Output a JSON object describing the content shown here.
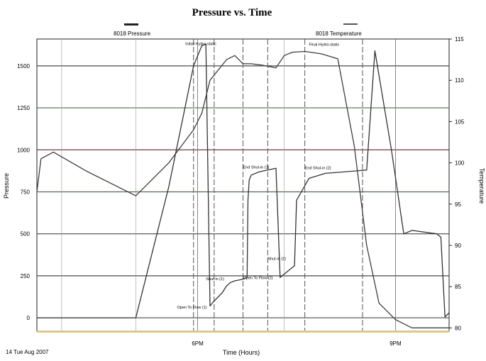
{
  "chart_data": {
    "type": "line",
    "title": "Pressure vs. Time",
    "xlabel": "Time (Hours)",
    "ylabel": "Pressure",
    "y2label": "Temperature",
    "footnote": "14 Tue Aug 2007",
    "x_ticks": [
      "6PM",
      "9PM"
    ],
    "xlim": [
      0,
      100
    ],
    "ylim": [
      -80,
      1660
    ],
    "y2lim": [
      79.6,
      115
    ],
    "y_ticks": [
      0,
      250,
      500,
      750,
      1000,
      1250,
      1500
    ],
    "y2_ticks": [
      80,
      85,
      90,
      95,
      100,
      105,
      110,
      115
    ],
    "grid": true,
    "legend_placement": "top",
    "colors": {
      "pressure_line": "#333333",
      "temperature_line": "#3d3d3d",
      "vertical_marker": "#555555",
      "h_grid_dark": "#4a4a4a",
      "h_grid_brown": "#6e3b3b",
      "h_grid_green": "#4f6e4f",
      "baseline": "#d9c98a"
    },
    "series": [
      {
        "name": "8018 Pressure",
        "x": [
          0,
          10,
          24,
          32,
          38,
          40,
          41,
          42,
          43,
          45,
          46,
          47,
          48,
          50,
          51,
          51.2,
          51.5,
          52,
          54,
          56,
          58,
          59,
          60,
          62,
          62.5,
          63,
          66,
          70,
          75,
          80,
          82,
          86,
          89,
          91,
          97,
          98,
          99,
          100
        ],
        "y": [
          0,
          0,
          0,
          780,
          1500,
          1620,
          1630,
          70,
          100,
          150,
          190,
          210,
          220,
          230,
          240,
          700,
          820,
          850,
          870,
          880,
          890,
          240,
          260,
          300,
          310,
          700,
          830,
          860,
          870,
          880,
          1590,
          1000,
          500,
          520,
          500,
          480,
          5,
          30
        ]
      },
      {
        "name": "8018 Temperature",
        "x": [
          0,
          1,
          4,
          12,
          24,
          32,
          38,
          40,
          42,
          46,
          48,
          50,
          52,
          55,
          58,
          60,
          62,
          65,
          69,
          73,
          77,
          80,
          83,
          87,
          91,
          95,
          96,
          98,
          99,
          100
        ],
        "y": [
          96.5,
          100.5,
          101.3,
          99,
          96,
          100,
          104,
          106,
          110,
          112.5,
          113,
          112,
          112,
          111.8,
          111.5,
          113,
          113.4,
          113.5,
          113.2,
          112.6,
          102,
          90,
          83,
          81,
          80,
          80,
          80,
          80,
          80,
          80
        ]
      }
    ],
    "vertical_markers": [
      38,
      43,
      50,
      56,
      65,
      79
    ],
    "annotations": [
      {
        "text": "Initial Hydro-static",
        "x": 36,
        "y": 1625
      },
      {
        "text": "Final Hydro-static",
        "x": 66,
        "y": 1620
      },
      {
        "text": "End Shut-in (1)",
        "x": 50,
        "y": 890
      },
      {
        "text": "End Shut-in (2)",
        "x": 65,
        "y": 885
      },
      {
        "text": "Shut-in (1)",
        "x": 41,
        "y": 225
      },
      {
        "text": "Shut-in (2)",
        "x": 56,
        "y": 345
      },
      {
        "text": "Open To Flow (1)",
        "x": 34,
        "y": 55
      },
      {
        "text": "Open To Flow (2)",
        "x": 50,
        "y": 230
      }
    ]
  }
}
